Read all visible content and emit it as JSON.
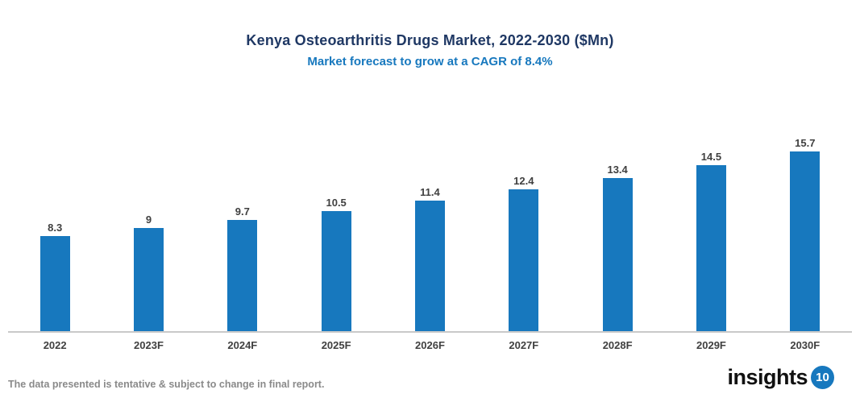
{
  "header": {
    "title": "Kenya Osteoarthritis Drugs Market, 2022-2030 ($Mn)",
    "subtitle": "Market forecast to grow at a CAGR of 8.4%"
  },
  "chart_data": {
    "type": "bar",
    "title": "Kenya Osteoarthritis Drugs Market, 2022-2030 ($Mn)",
    "subtitle": "Market forecast to grow at a CAGR of 8.4%",
    "categories": [
      "2022",
      "2023F",
      "2024F",
      "2025F",
      "2026F",
      "2027F",
      "2028F",
      "2029F",
      "2030F"
    ],
    "values": [
      8.3,
      9,
      9.7,
      10.5,
      11.4,
      12.4,
      13.4,
      14.5,
      15.7
    ],
    "value_labels": [
      "8.3",
      "9",
      "9.7",
      "10.5",
      "11.4",
      "12.4",
      "13.4",
      "14.5",
      "15.7"
    ],
    "xlabel": "",
    "ylabel": "",
    "ylim": [
      0,
      17
    ],
    "grid": false,
    "legend": false,
    "bar_color": "#1778be",
    "axis_line_color": "#c9c9c9",
    "label_color": "#404040"
  },
  "footer": {
    "disclaimer": "The data presented is tentative & subject to change in final report.",
    "logo_text": "insights",
    "logo_badge": "10"
  },
  "colors": {
    "title": "#1f3864",
    "subtitle": "#1778be",
    "bar": "#1778be",
    "background": "#ffffff"
  }
}
